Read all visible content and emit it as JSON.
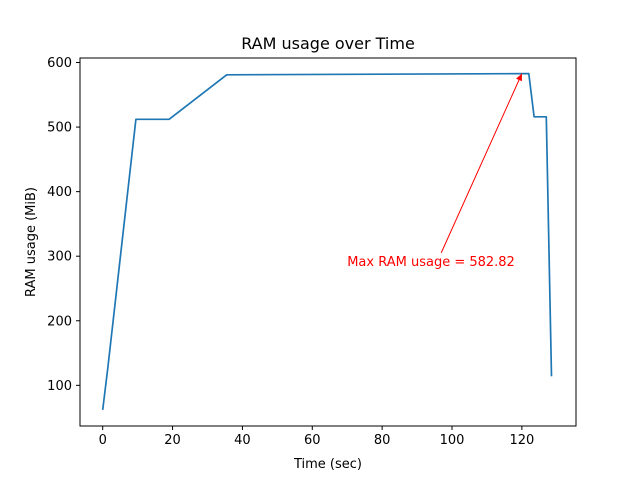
{
  "chart_data": {
    "type": "line",
    "title": "RAM usage over Time",
    "xlabel": "Time (sec)",
    "ylabel": "RAM usage (MiB)",
    "xlim": [
      -6.5,
      135.5
    ],
    "ylim": [
      37,
      607
    ],
    "x_ticks": [
      0,
      20,
      40,
      60,
      80,
      100,
      120
    ],
    "y_ticks": [
      100,
      200,
      300,
      400,
      500,
      600
    ],
    "grid": false,
    "legend": "none",
    "series": [
      {
        "color": "#1f77b4",
        "points": [
          [
            0,
            62
          ],
          [
            1.5,
            128
          ],
          [
            9.5,
            512
          ],
          [
            19,
            512
          ],
          [
            35.5,
            581
          ],
          [
            122,
            582.82
          ],
          [
            123.5,
            516
          ],
          [
            127,
            516
          ],
          [
            128.5,
            114
          ]
        ]
      }
    ],
    "annotations": [
      {
        "text": "Max RAM usage = 582.82",
        "color": "#ff0000",
        "point": [
          120,
          582.82
        ],
        "text_position": [
          70,
          285
        ]
      }
    ]
  }
}
